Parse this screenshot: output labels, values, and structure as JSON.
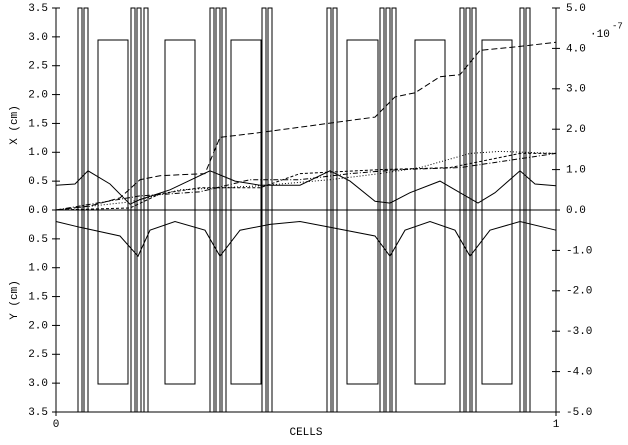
{
  "chart_data": {
    "type": "line",
    "xlabel": "CELLS",
    "ylabel_top": "X (cm)",
    "ylabel_bottom": "Y (cm)",
    "y2_multiplier": "·10",
    "y2_exponent": "-7",
    "xlim": [
      0,
      1
    ],
    "xticks": [
      0,
      1
    ],
    "ylim": [
      -3.5,
      3.5
    ],
    "yticks": [
      3.5,
      {
        "value": 3,
        "label": "3.0"
      },
      2.5,
      {
        "value": 2,
        "label": "2.0"
      },
      1.5,
      {
        "value": 1,
        "label": "1.0"
      },
      0.5,
      {
        "value": 0,
        "label": "0.0"
      },
      {
        "value": -0.5,
        "label": "0.5"
      },
      {
        "value": -1,
        "label": "1.0"
      },
      {
        "value": -1.5,
        "label": "1.5"
      },
      {
        "value": -2,
        "label": "2.0"
      },
      {
        "value": -2.5,
        "label": "2.5"
      },
      {
        "value": -3,
        "label": "3.0"
      },
      {
        "value": -3.5,
        "label": "3.5"
      }
    ],
    "y2lim": [
      -5,
      5
    ],
    "y2ticks": [
      {
        "value": 5,
        "label": "5.0"
      },
      {
        "value": 4,
        "label": "4.0"
      },
      {
        "value": 3,
        "label": "3.0"
      },
      {
        "value": 2,
        "label": "2.0"
      },
      {
        "value": 1,
        "label": "1.0"
      },
      {
        "value": 0,
        "label": "0.0"
      },
      {
        "value": -1,
        "label": "-1.0"
      },
      {
        "value": -2,
        "label": "-2.0"
      },
      {
        "value": -3,
        "label": "-3.0"
      },
      {
        "value": -4,
        "label": "-4.0"
      },
      {
        "value": -5,
        "label": "-5.0"
      }
    ],
    "series": [
      {
        "color": "#000000",
        "dash": "none",
        "x": [
          0,
          0.038,
          0.064,
          0.108,
          0.148,
          0.168,
          0.228,
          0.308,
          0.358,
          0.408,
          0.488,
          0.548,
          0.588,
          0.638,
          0.668,
          0.708,
          0.768,
          0.808,
          0.844,
          0.878,
          0.928,
          0.958,
          1
        ],
        "values": [
          0.43,
          0.45,
          0.68,
          0.45,
          0.1,
          0.18,
          0.35,
          0.68,
          0.5,
          0.43,
          0.43,
          0.68,
          0.5,
          0.15,
          0.12,
          0.3,
          0.5,
          0.3,
          0.12,
          0.3,
          0.68,
          0.45,
          0.42
        ]
      },
      {
        "color": "#000000",
        "dash": "none",
        "x": [
          0,
          0.048,
          0.128,
          0.164,
          0.188,
          0.238,
          0.298,
          0.328,
          0.368,
          0.428,
          0.488,
          0.548,
          0.638,
          0.668,
          0.698,
          0.748,
          0.798,
          0.828,
          0.868,
          0.928,
          1
        ],
        "values": [
          -0.2,
          -0.3,
          -0.45,
          -0.8,
          -0.35,
          -0.2,
          -0.35,
          -0.8,
          -0.35,
          -0.25,
          -0.2,
          -0.3,
          -0.45,
          -0.8,
          -0.35,
          -0.2,
          -0.35,
          -0.8,
          -0.35,
          -0.2,
          -0.35
        ]
      },
      {
        "color": "#000000",
        "dash": "6 3",
        "axis": "y2",
        "x": [
          0,
          0.068,
          0.128,
          0.168,
          0.208,
          0.298,
          0.328,
          0.398,
          0.488,
          0.578,
          0.638,
          0.678,
          0.718,
          0.768,
          0.808,
          0.848,
          0.928,
          1
        ],
        "values": [
          0,
          0.1,
          0.3,
          0.75,
          0.85,
          0.9,
          1.8,
          1.9,
          2.05,
          2.2,
          2.3,
          2.8,
          2.9,
          3.3,
          3.35,
          3.95,
          4.05,
          4.15
        ]
      },
      {
        "color": "#000000",
        "dash": "1 2",
        "axis": "y2",
        "x": [
          0,
          0.148,
          0.248,
          0.328,
          0.408,
          0.548,
          0.648,
          0.728,
          0.828,
          0.888,
          1
        ],
        "values": [
          0,
          0.2,
          0.5,
          0.55,
          0.6,
          0.75,
          0.9,
          1.05,
          1.4,
          1.45,
          1.4
        ]
      },
      {
        "color": "#000000",
        "dash": "5 2 1 2",
        "axis": "y2",
        "x": [
          0,
          0.168,
          0.288,
          0.388,
          0.488,
          0.588,
          0.688,
          0.808,
          1
        ],
        "values": [
          0,
          0.35,
          0.45,
          0.75,
          0.75,
          0.9,
          1,
          1.05,
          1.4
        ]
      },
      {
        "color": "#000000",
        "dash": "3 2",
        "axis": "y2",
        "x": [
          0,
          0.148,
          0.208,
          0.288,
          0.408,
          0.488,
          0.648,
          0.788,
          0.928,
          1
        ],
        "values": [
          0,
          0.05,
          0.4,
          0.55,
          0.55,
          0.9,
          1,
          1.05,
          1.4,
          1.4
        ]
      }
    ]
  }
}
